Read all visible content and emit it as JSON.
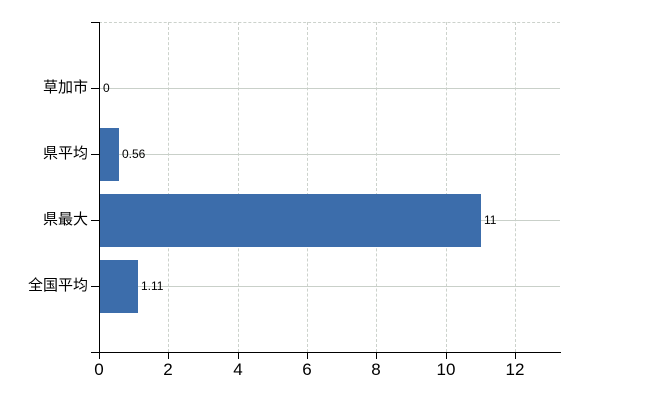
{
  "chart_data": {
    "type": "bar",
    "orientation": "horizontal",
    "title": "",
    "xlabel": "",
    "ylabel": "",
    "categories": [
      "草加市",
      "県平均",
      "県最大",
      "全国平均"
    ],
    "values": [
      0,
      0.56,
      11,
      1.11
    ],
    "value_labels": [
      "0",
      "0.56",
      "11",
      "1.11"
    ],
    "x_ticks": [
      0,
      2,
      4,
      6,
      8,
      10,
      12
    ],
    "x_tick_labels": [
      "0",
      "2",
      "4",
      "6",
      "8",
      "10",
      "12"
    ],
    "xlim": [
      0,
      13.3
    ],
    "grid": true,
    "legend": false,
    "colors": {
      "bar": "#3c6dab",
      "horizontal_grid": "#c9d0c9",
      "vertical_grid": "#ccd2cc",
      "axis": "#000000",
      "text": "#000000",
      "background": "#ffffff"
    }
  }
}
